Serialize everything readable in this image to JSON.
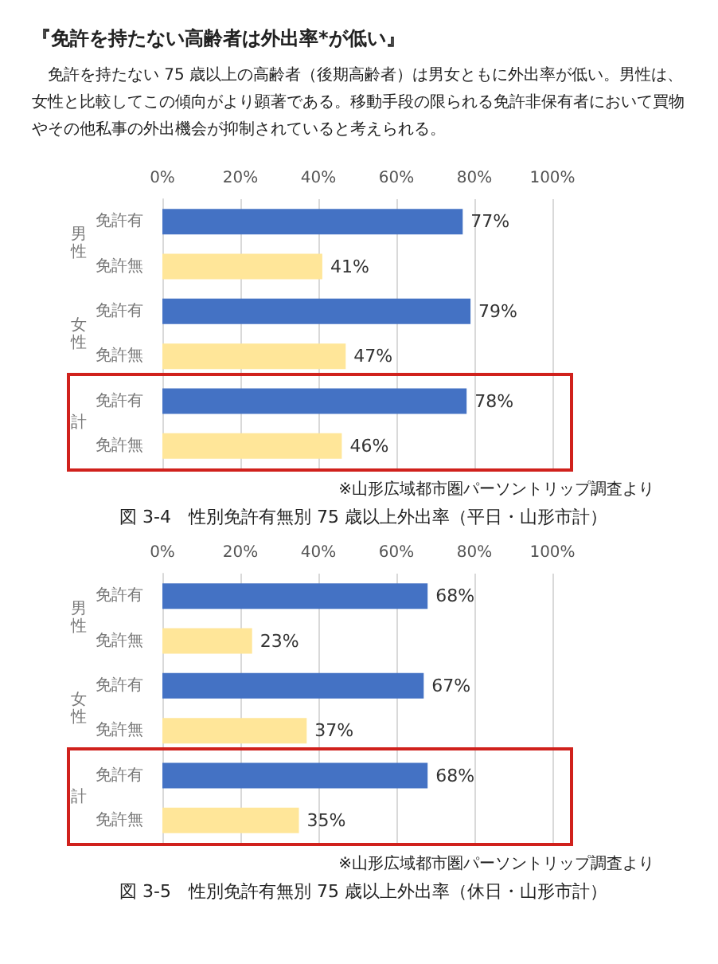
{
  "chart_data": [
    {
      "type": "other",
      "title": "『免許を持たない高齢者は外出率*が低い』",
      "subtitle": "免許を持たない 75 歳以上の高齢者（後期高齢者）は男女ともに外出率が低い。男性は、女性と比較してこの傾向がより顕著である。移動手段の限られる免許非保有者において買物やその他私事の外出機会が抑制されていると考えられる。"
    },
    {
      "type": "bar",
      "orientation": "horizontal",
      "title": "図 3-4　性別免許有無別 75 歳以上外出率（平日・山形市計）",
      "categories": [
        "免許有",
        "免許無",
        "免許有",
        "免許無",
        "免許有",
        "免許無"
      ],
      "values": [
        77,
        41,
        79,
        47,
        78,
        46
      ],
      "colors": [
        "#4472c4",
        "#ffe699",
        "#4472c4",
        "#ffe699",
        "#4472c4",
        "#ffe699"
      ],
      "value_labels": [
        "77%",
        "41%",
        "79%",
        "47%",
        "78%",
        "46%"
      ],
      "xlim": [
        0,
        100
      ],
      "xticks": [
        {
          "value": 0,
          "label": "0%"
        },
        {
          "value": 20,
          "label": "20%"
        },
        {
          "value": 40,
          "label": "40%"
        },
        {
          "value": 60,
          "label": "60%"
        },
        {
          "value": 80,
          "label": "80%"
        },
        {
          "value": 100,
          "label": "100%"
        }
      ],
      "grid": "x",
      "annotations": [
        "男性",
        "女性",
        "計",
        "※山形広域都市圏パーソントリップ調査より"
      ]
    },
    {
      "type": "bar",
      "orientation": "horizontal",
      "title": "図 3-5　性別免許有無別 75 歳以上外出率（休日・山形市計）",
      "categories": [
        "免許有",
        "免許無",
        "免許有",
        "免許無",
        "免許有",
        "免許無"
      ],
      "values": [
        68,
        23,
        67,
        37,
        68,
        35
      ],
      "colors": [
        "#4472c4",
        "#ffe699",
        "#4472c4",
        "#ffe699",
        "#4472c4",
        "#ffe699"
      ],
      "value_labels": [
        "68%",
        "23%",
        "67%",
        "37%",
        "68%",
        "35%"
      ],
      "xlim": [
        0,
        100
      ],
      "xticks": [
        {
          "value": 0,
          "label": "0%"
        },
        {
          "value": 20,
          "label": "20%"
        },
        {
          "value": 40,
          "label": "40%"
        },
        {
          "value": 60,
          "label": "60%"
        },
        {
          "value": 80,
          "label": "80%"
        },
        {
          "value": 100,
          "label": "100%"
        }
      ],
      "grid": "x",
      "annotations": [
        "男性",
        "女性",
        "計",
        "※山形広域都市圏パーソントリップ調査より"
      ]
    }
  ]
}
